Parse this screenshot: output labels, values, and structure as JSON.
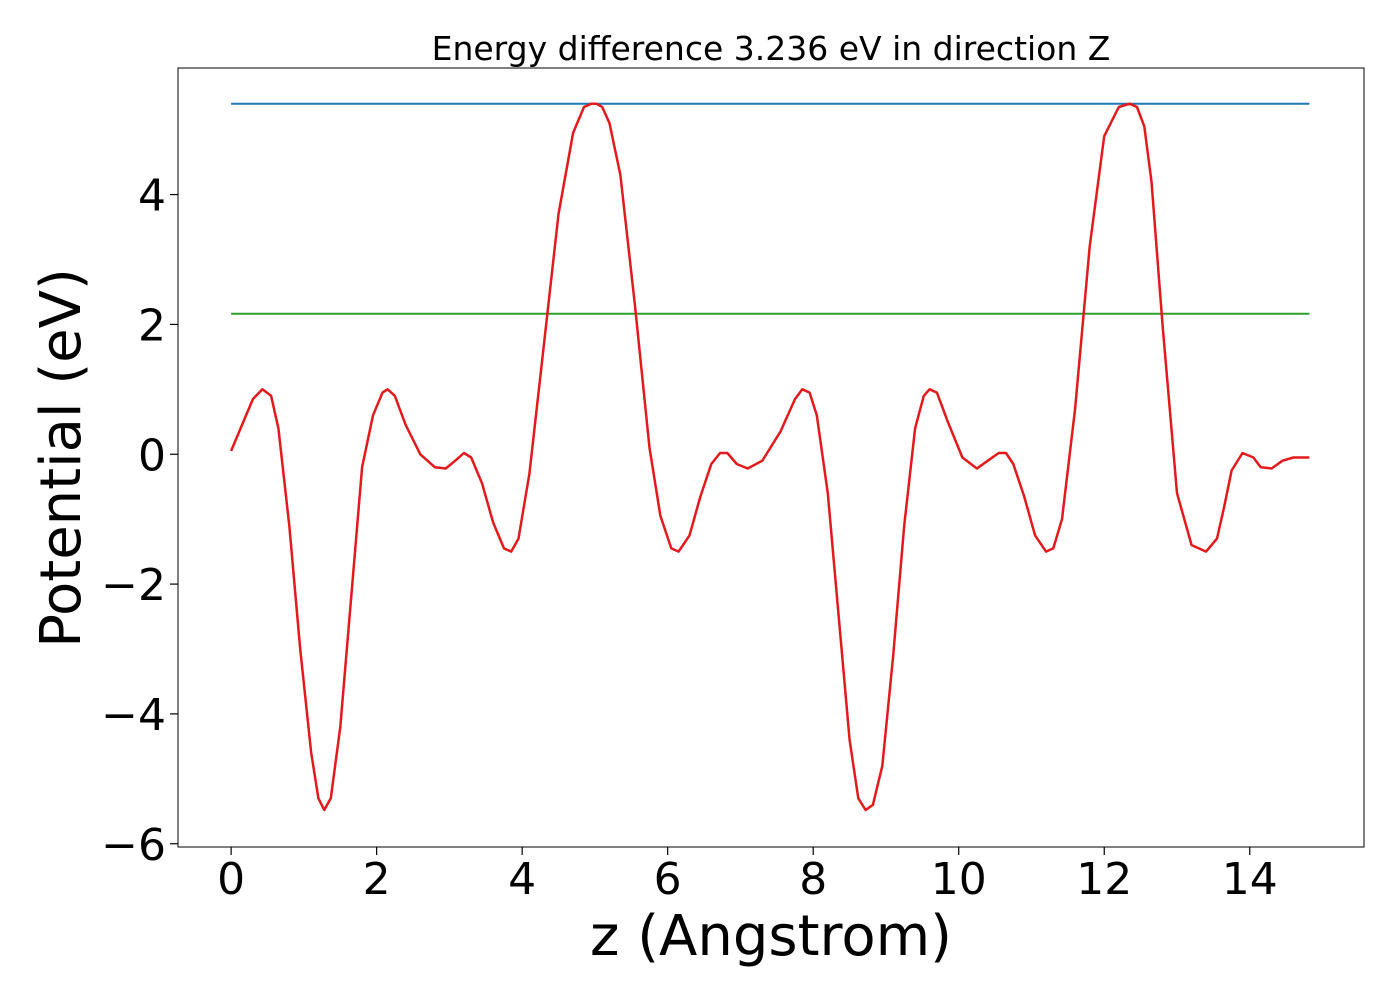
{
  "chart_data": {
    "type": "line",
    "title": "Energy difference 3.236 eV in direction Z",
    "xlabel": "z (Angstrom)",
    "ylabel": "Potential (eV)",
    "xlim": [
      -0.73,
      15.57
    ],
    "ylim": [
      -6.05,
      5.95
    ],
    "xticks": [
      0,
      2,
      4,
      6,
      8,
      10,
      12,
      14
    ],
    "yticks": [
      -6,
      -4,
      -2,
      0,
      2,
      4
    ],
    "xtick_labels": [
      "0",
      "2",
      "4",
      "6",
      "8",
      "10",
      "12",
      "14"
    ],
    "ytick_labels": [
      "−6",
      "−4",
      "−2",
      "0",
      "2",
      "4"
    ],
    "grid": false,
    "series": [
      {
        "kind": "hline",
        "color": "#1f77b4",
        "x": [
          0,
          14.82
        ],
        "y": [
          5.4,
          5.4
        ]
      },
      {
        "kind": "hline",
        "color": "#2ca02c",
        "x": [
          0,
          14.82
        ],
        "y": [
          2.164,
          2.164
        ]
      },
      {
        "kind": "line",
        "color": "#e31a1c",
        "x": [
          0.0,
          0.15,
          0.3,
          0.43,
          0.55,
          0.65,
          0.8,
          0.95,
          1.1,
          1.2,
          1.28,
          1.37,
          1.5,
          1.65,
          1.8,
          1.95,
          2.08,
          2.15,
          2.25,
          2.4,
          2.6,
          2.8,
          2.95,
          3.1,
          3.2,
          3.3,
          3.45,
          3.6,
          3.75,
          3.85,
          3.95,
          4.1,
          4.3,
          4.5,
          4.7,
          4.85,
          4.95,
          5.02,
          5.1,
          5.2,
          5.35,
          5.55,
          5.75,
          5.9,
          6.05,
          6.15,
          6.3,
          6.45,
          6.6,
          6.72,
          6.82,
          6.95,
          7.1,
          7.3,
          7.55,
          7.75,
          7.85,
          7.95,
          8.05,
          8.2,
          8.35,
          8.5,
          8.62,
          8.72,
          8.82,
          8.95,
          9.1,
          9.25,
          9.4,
          9.52,
          9.6,
          9.7,
          9.85,
          10.05,
          10.25,
          10.4,
          10.55,
          10.65,
          10.75,
          10.9,
          11.05,
          11.2,
          11.3,
          11.42,
          11.6,
          11.8,
          12.0,
          12.2,
          12.35,
          12.45,
          12.55,
          12.65,
          12.8,
          13.0,
          13.2,
          13.4,
          13.55,
          13.65,
          13.75,
          13.9,
          14.05,
          14.15,
          14.3,
          14.45,
          14.6,
          14.82
        ],
        "y": [
          0.05,
          0.45,
          0.85,
          1.0,
          0.9,
          0.4,
          -1.1,
          -3.0,
          -4.6,
          -5.3,
          -5.48,
          -5.3,
          -4.2,
          -2.2,
          -0.2,
          0.6,
          0.95,
          1.0,
          0.9,
          0.45,
          0.0,
          -0.2,
          -0.22,
          -0.08,
          0.02,
          -0.05,
          -0.45,
          -1.05,
          -1.45,
          -1.5,
          -1.3,
          -0.3,
          1.7,
          3.7,
          4.95,
          5.35,
          5.4,
          5.4,
          5.35,
          5.1,
          4.3,
          2.3,
          0.1,
          -0.95,
          -1.45,
          -1.5,
          -1.25,
          -0.65,
          -0.15,
          0.02,
          0.02,
          -0.15,
          -0.22,
          -0.1,
          0.35,
          0.85,
          1.0,
          0.95,
          0.6,
          -0.6,
          -2.5,
          -4.4,
          -5.3,
          -5.48,
          -5.4,
          -4.8,
          -3.1,
          -1.1,
          0.4,
          0.9,
          1.0,
          0.95,
          0.5,
          -0.05,
          -0.22,
          -0.1,
          0.02,
          0.02,
          -0.15,
          -0.65,
          -1.25,
          -1.5,
          -1.45,
          -1.0,
          0.7,
          3.2,
          4.9,
          5.35,
          5.4,
          5.35,
          5.05,
          4.2,
          2.0,
          -0.6,
          -1.4,
          -1.5,
          -1.3,
          -0.8,
          -0.25,
          0.02,
          -0.05,
          -0.2,
          -0.22,
          -0.1,
          -0.05,
          -0.05
        ]
      }
    ]
  }
}
